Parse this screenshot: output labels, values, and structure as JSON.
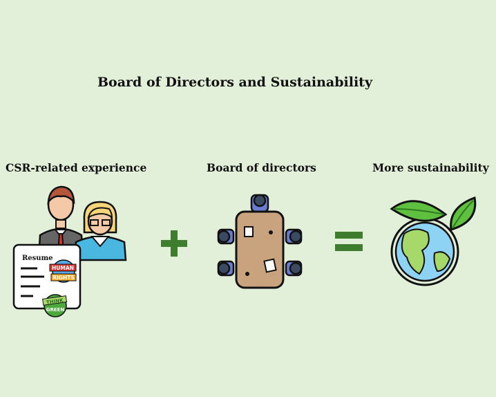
{
  "title": "Board of Directors and Sustainability",
  "columns": [
    {
      "label": "CSR-related experience",
      "icon": "people-with-resume-icon"
    },
    {
      "label": "Board of directors",
      "icon": "boardroom-table-icon"
    },
    {
      "label": "More sustainability",
      "icon": "globe-with-leaves-icon"
    }
  ],
  "operators": [
    "+",
    "="
  ],
  "resume": {
    "heading": "Resume",
    "badge1": [
      "HUMAN",
      "RIGHTS"
    ],
    "badge2": [
      "THINK",
      "GREEN"
    ]
  },
  "colors": {
    "background": "#e2efd9",
    "operator_green": "#3f7d2e",
    "leaf_green": "#5fbf3f",
    "ocean_blue": "#8fd3f4",
    "land_green": "#a6d86a",
    "table_brown": "#c9a27e"
  }
}
